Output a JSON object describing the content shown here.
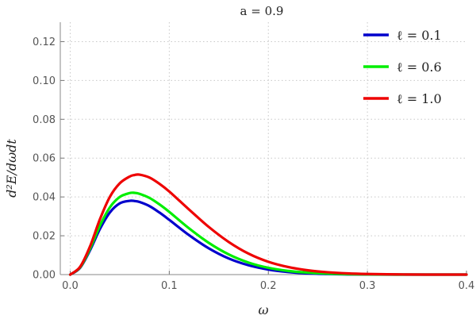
{
  "chart_data": {
    "type": "line",
    "title": "a = 0.9",
    "xlabel": "ω",
    "ylabel": "d²E/dωdt",
    "xlim": [
      -0.01,
      0.4
    ],
    "ylim": [
      0,
      0.13
    ],
    "x_ticks": [
      "0.0",
      "0.1",
      "0.2",
      "0.3",
      "0.4"
    ],
    "y_ticks": [
      "0.00",
      "0.02",
      "0.04",
      "0.06",
      "0.08",
      "0.10",
      "0.12"
    ],
    "grid": true,
    "legend_position": "top-right",
    "x": [
      0.0,
      0.01,
      0.02,
      0.03,
      0.04,
      0.05,
      0.06,
      0.065,
      0.07,
      0.08,
      0.09,
      0.1,
      0.12,
      0.14,
      0.16,
      0.18,
      0.2,
      0.22,
      0.24,
      0.26,
      0.28,
      0.3,
      0.33,
      0.36,
      0.4
    ],
    "series": [
      {
        "name": "ℓ = 0.1",
        "color": "#0000cc",
        "values": [
          0.0,
          0.0035,
          0.0125,
          0.0235,
          0.032,
          0.0367,
          0.038,
          0.0379,
          0.0374,
          0.0353,
          0.032,
          0.0282,
          0.0203,
          0.0135,
          0.0083,
          0.0048,
          0.0026,
          0.0013,
          0.0006,
          0.0003,
          0.0001,
          5e-05,
          0.0,
          0.0,
          0.0
        ]
      },
      {
        "name": "ℓ = 0.6",
        "color": "#00ee00",
        "values": [
          0.0,
          0.0037,
          0.0133,
          0.0252,
          0.0346,
          0.04,
          0.042,
          0.0421,
          0.0416,
          0.0395,
          0.0362,
          0.0323,
          0.0238,
          0.0163,
          0.0104,
          0.0062,
          0.0035,
          0.0019,
          0.001,
          0.0005,
          0.0002,
          0.0001,
          0.0,
          0.0,
          0.0
        ]
      },
      {
        "name": "ℓ = 1.0",
        "color": "#ee0000",
        "values": [
          0.0,
          0.004,
          0.0145,
          0.0285,
          0.04,
          0.047,
          0.0505,
          0.0513,
          0.0515,
          0.05,
          0.0468,
          0.0428,
          0.0335,
          0.0245,
          0.0168,
          0.0108,
          0.0066,
          0.0039,
          0.0022,
          0.0012,
          0.0006,
          0.0003,
          0.0001,
          0.0,
          0.0
        ]
      }
    ]
  }
}
